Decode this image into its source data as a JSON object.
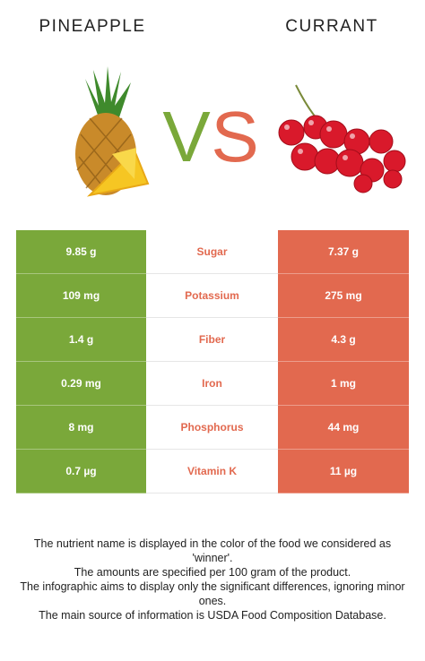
{
  "header": {
    "left": "PINEAPPLE",
    "right": "CURRANT",
    "vs_left": "V",
    "vs_right": "S"
  },
  "colors": {
    "left": "#7aa83a",
    "right": "#e2694f"
  },
  "table": {
    "rows": [
      {
        "left": "9.85 g",
        "nutrient": "Sugar",
        "right": "7.37 g",
        "winner": "right"
      },
      {
        "left": "109 mg",
        "nutrient": "Potassium",
        "right": "275 mg",
        "winner": "right"
      },
      {
        "left": "1.4 g",
        "nutrient": "Fiber",
        "right": "4.3 g",
        "winner": "right"
      },
      {
        "left": "0.29 mg",
        "nutrient": "Iron",
        "right": "1 mg",
        "winner": "right"
      },
      {
        "left": "8 mg",
        "nutrient": "Phosphorus",
        "right": "44 mg",
        "winner": "right"
      },
      {
        "left": "0.7 µg",
        "nutrient": "Vitamin K",
        "right": "11 µg",
        "winner": "right"
      }
    ]
  },
  "footer": [
    "The nutrient name is displayed in the color of the food we considered as 'winner'.",
    "The amounts are specified per 100 gram of the product.",
    "The infographic aims to display only the significant differences, ignoring minor ones.",
    "The main source of information is USDA Food Composition Database."
  ]
}
